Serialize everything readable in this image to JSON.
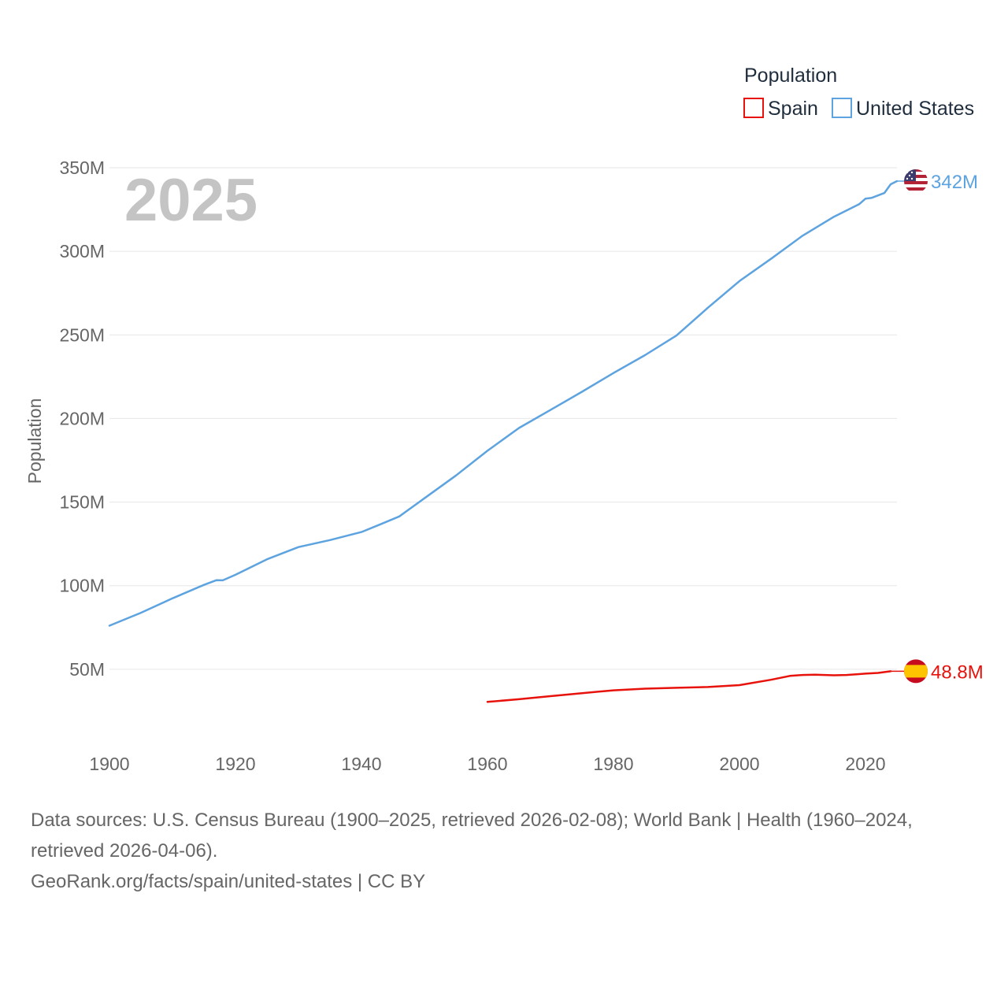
{
  "chart_data": {
    "type": "line",
    "year": "2025",
    "ylabel": "Population",
    "legend_title": "Population",
    "legend_placement": "top-right",
    "xlim": [
      1900,
      2025
    ],
    "ylim": [
      0,
      350
    ],
    "x_ticks": [
      1900,
      1920,
      1940,
      1960,
      1980,
      2000,
      2020
    ],
    "x_tick_labels": [
      "1900",
      "1920",
      "1940",
      "1960",
      "1980",
      "2000",
      "2020"
    ],
    "y_ticks": [
      50,
      100,
      150,
      200,
      250,
      300,
      350
    ],
    "y_tick_labels": [
      "50M",
      "100M",
      "150M",
      "200M",
      "250M",
      "300M",
      "350M"
    ],
    "y_unit": "millions",
    "grid": true,
    "series": [
      {
        "name": "Spain",
        "color": "#e8120c",
        "end_label": "48.8M",
        "flag": "spain-flag",
        "points": [
          [
            1960,
            30.5
          ],
          [
            1965,
            32.1
          ],
          [
            1970,
            33.9
          ],
          [
            1975,
            35.7
          ],
          [
            1980,
            37.4
          ],
          [
            1985,
            38.4
          ],
          [
            1990,
            38.9
          ],
          [
            1995,
            39.4
          ],
          [
            2000,
            40.5
          ],
          [
            2005,
            43.7
          ],
          [
            2008,
            46.0
          ],
          [
            2010,
            46.6
          ],
          [
            2012,
            46.8
          ],
          [
            2015,
            46.4
          ],
          [
            2017,
            46.6
          ],
          [
            2019,
            47.1
          ],
          [
            2020,
            47.4
          ],
          [
            2022,
            47.8
          ],
          [
            2024,
            48.8
          ]
        ]
      },
      {
        "name": "United States",
        "color": "#5da3e0",
        "end_label": "342M",
        "flag": "us-flag",
        "points": [
          [
            1900,
            76.1
          ],
          [
            1905,
            83.8
          ],
          [
            1910,
            92.4
          ],
          [
            1915,
            100.5
          ],
          [
            1917,
            103.3
          ],
          [
            1918,
            103.2
          ],
          [
            1920,
            106.5
          ],
          [
            1925,
            115.8
          ],
          [
            1930,
            123.1
          ],
          [
            1935,
            127.3
          ],
          [
            1940,
            132.1
          ],
          [
            1943,
            136.7
          ],
          [
            1946,
            141.4
          ],
          [
            1950,
            152.3
          ],
          [
            1955,
            165.9
          ],
          [
            1960,
            180.7
          ],
          [
            1965,
            194.3
          ],
          [
            1970,
            205.1
          ],
          [
            1975,
            216.0
          ],
          [
            1980,
            227.2
          ],
          [
            1985,
            237.9
          ],
          [
            1990,
            249.6
          ],
          [
            1995,
            266.3
          ],
          [
            2000,
            282.2
          ],
          [
            2005,
            295.5
          ],
          [
            2010,
            309.3
          ],
          [
            2015,
            320.7
          ],
          [
            2019,
            328.2
          ],
          [
            2020,
            331.5
          ],
          [
            2021,
            332.0
          ],
          [
            2023,
            334.9
          ],
          [
            2024,
            340.1
          ],
          [
            2025,
            342.0
          ]
        ]
      }
    ]
  },
  "footer": {
    "sources": "Data sources: U.S. Census Bureau (1900–2025, retrieved 2026-02-08); World Bank | Health (1960–2024, retrieved 2026-04-06).",
    "link": "GeoRank.org/facts/spain/united-states | CC BY"
  }
}
